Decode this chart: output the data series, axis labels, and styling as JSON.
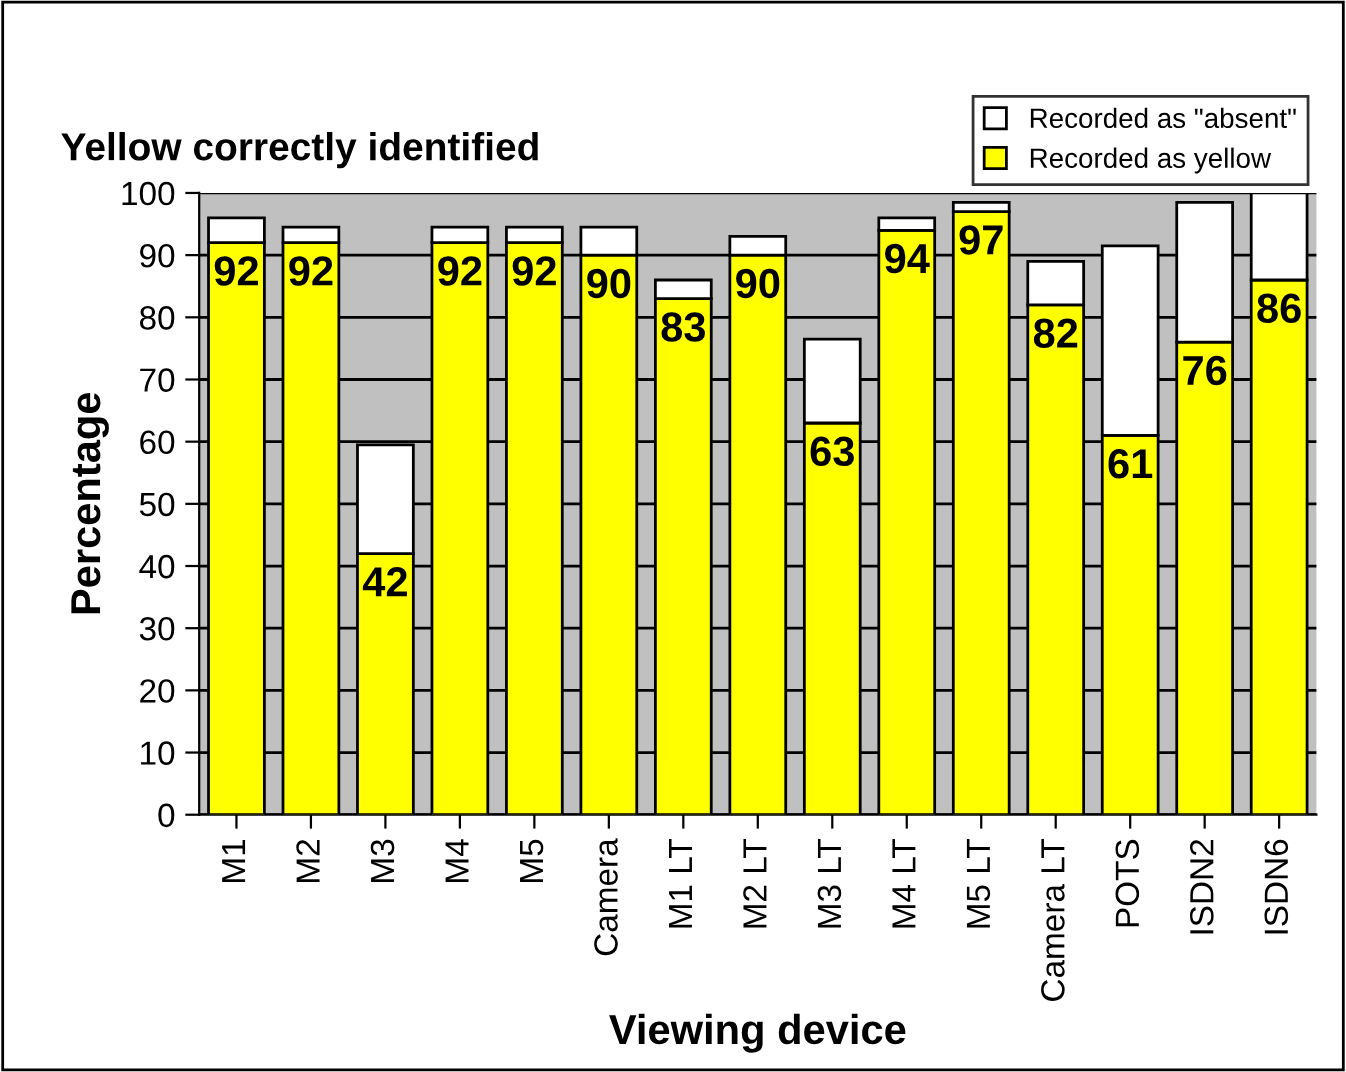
{
  "chart_data": {
    "type": "bar",
    "title": "Yellow correctly identified",
    "xlabel": "Viewing device",
    "ylabel": "Percentage",
    "categories": [
      "M1",
      "M2",
      "M3",
      "M4",
      "M5",
      "Camera",
      "M1 LT",
      "M2 LT",
      "M3 LT",
      "M4 LT",
      "M5 LT",
      "Camera LT",
      "POTS",
      "ISDN2",
      "ISDN6"
    ],
    "stacked": true,
    "series": [
      {
        "name": "Recorded as yellow",
        "color": "#ffff00",
        "values": [
          92,
          92,
          42,
          92,
          92,
          90,
          83,
          90,
          63,
          94,
          97,
          82,
          61,
          76,
          86
        ],
        "value_labels": [
          "92",
          "92",
          "42",
          "92",
          "92",
          "90",
          "83",
          "90",
          "63",
          "94",
          "97",
          "82",
          "61",
          "76",
          "86"
        ]
      },
      {
        "name": "Recorded as \"absent\"",
        "color": "#ffffff",
        "values": [
          4,
          2.5,
          17.5,
          2.5,
          2.5,
          4.5,
          3,
          3,
          13.5,
          2,
          1.5,
          7,
          30.5,
          22.5,
          14
        ]
      }
    ],
    "ylim": [
      0,
      100
    ],
    "yticks": [
      0,
      10,
      20,
      30,
      40,
      50,
      60,
      70,
      80,
      90,
      100
    ],
    "grid": "y",
    "legend": "top right"
  }
}
